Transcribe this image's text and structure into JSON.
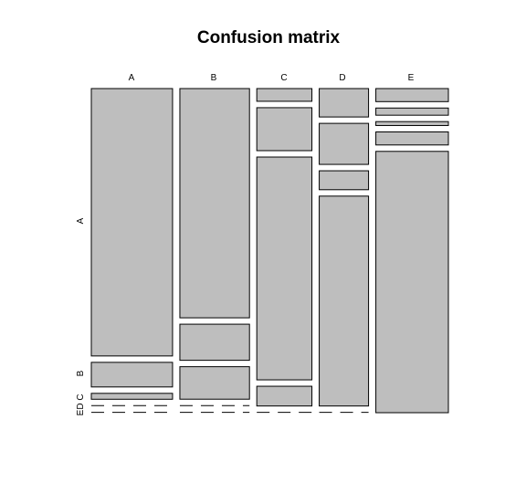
{
  "chart_data": {
    "type": "mosaic",
    "title": "Confusion matrix",
    "columns": [
      "A",
      "B",
      "C",
      "D",
      "E"
    ],
    "rows": [
      "A",
      "B",
      "C",
      "D",
      "E"
    ],
    "column_totals": [
      0.28,
      0.24,
      0.19,
      0.17,
      0.25
    ],
    "cells": [
      [
        0.815,
        0.635,
        0.04,
        0.09,
        0.04
      ],
      [
        0.075,
        0.1,
        0.135,
        0.13,
        0.022
      ],
      [
        0.018,
        0.09,
        0.7,
        0.06,
        0.012
      ],
      [
        0.001,
        0.001,
        0.062,
        0.665,
        0.04
      ],
      [
        0.001,
        0.001,
        0.001,
        0.001,
        0.8
      ]
    ],
    "fill_color": "#bebebe",
    "stroke_color": "#000000"
  }
}
